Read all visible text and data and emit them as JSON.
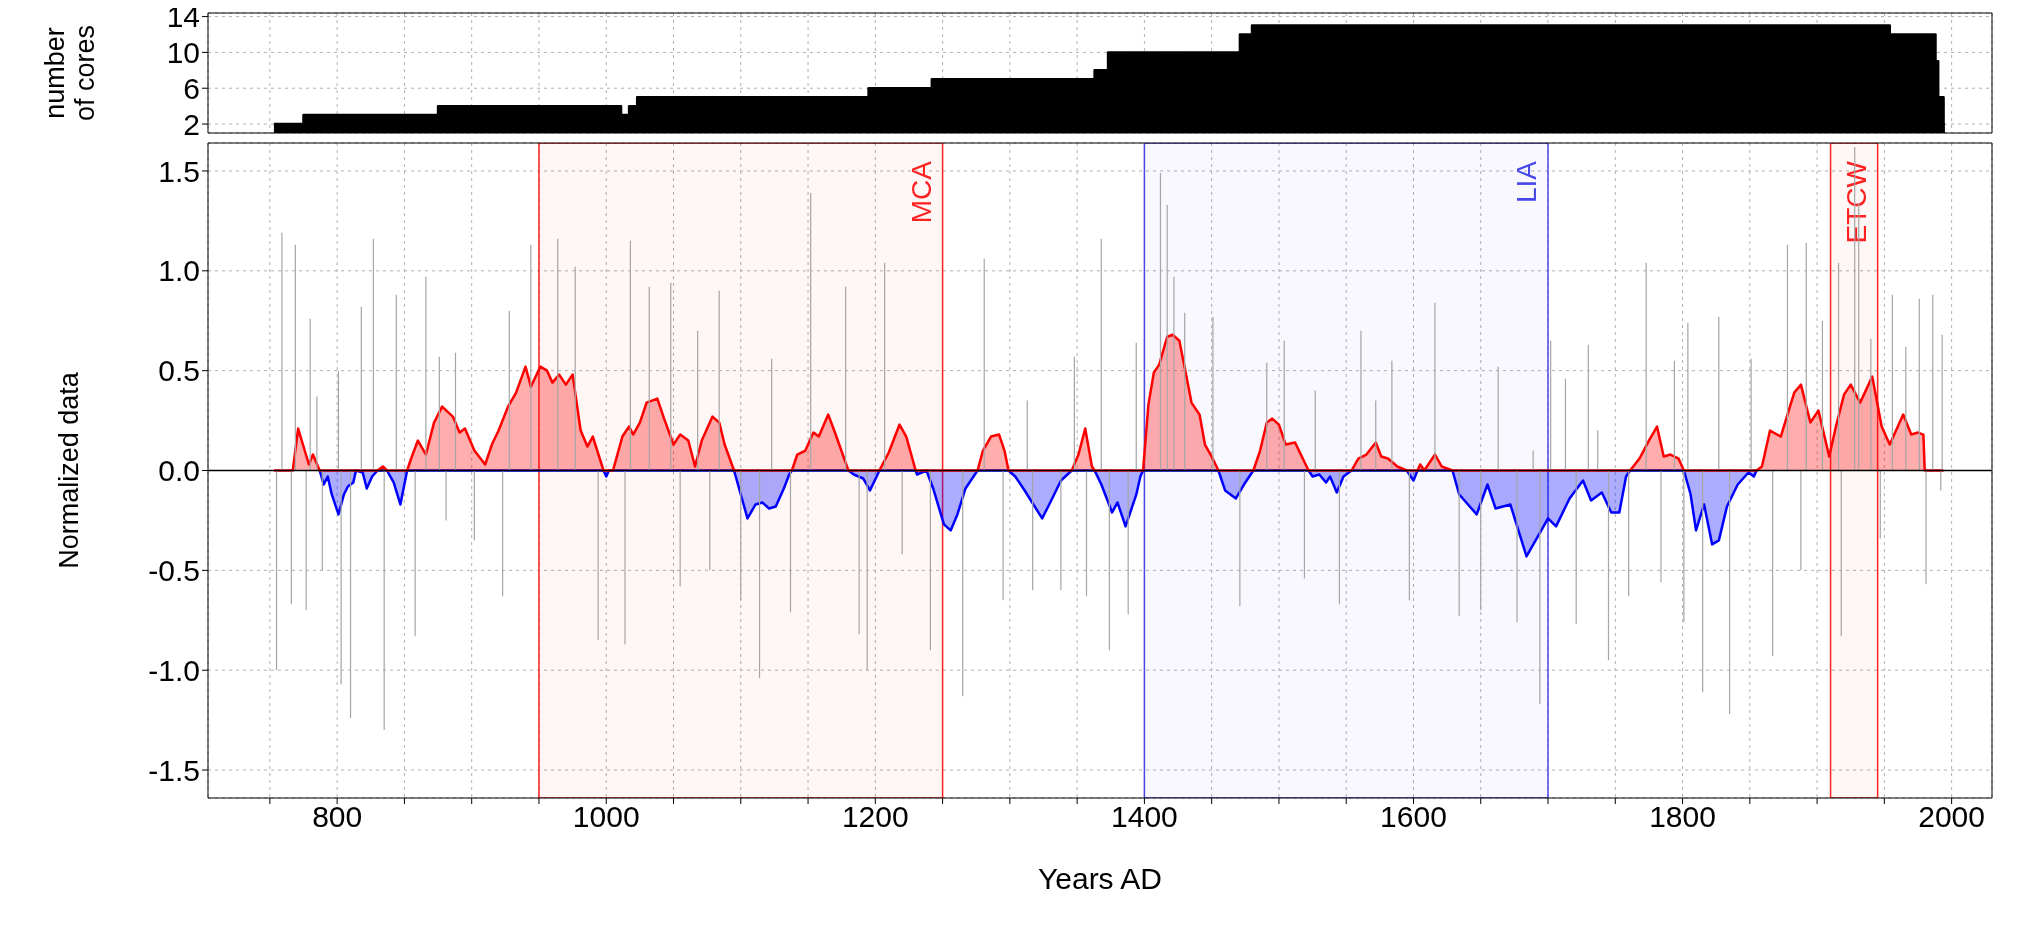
{
  "chart_data": [
    {
      "type": "area",
      "ylabel": "number of cores",
      "xlim": [
        704,
        2030
      ],
      "ylim": [
        1,
        14.4
      ],
      "yticks": [
        2,
        6,
        10,
        14
      ],
      "grid": true,
      "tick_labels": "y",
      "xticks": [
        {
          "value": 750,
          "label": null
        },
        800,
        {
          "value": 850,
          "label": null
        },
        {
          "value": 900,
          "label": null
        },
        {
          "value": 950,
          "label": null
        },
        1000,
        {
          "value": 1050,
          "label": null
        },
        {
          "value": 1100,
          "label": null
        },
        {
          "value": 1150,
          "label": null
        },
        1200,
        {
          "value": 1250,
          "label": null
        },
        {
          "value": 1300,
          "label": null
        },
        {
          "value": 1350,
          "label": null
        },
        1400,
        {
          "value": 1450,
          "label": null
        },
        {
          "value": 1500,
          "label": null
        },
        {
          "value": 1550,
          "label": null
        },
        1600,
        {
          "value": 1650,
          "label": null
        },
        {
          "value": 1700,
          "label": null
        },
        {
          "value": 1750,
          "label": null
        },
        1800,
        {
          "value": 1850,
          "label": null
        },
        {
          "value": 1900,
          "label": null
        },
        {
          "value": 1950,
          "label": null
        },
        2000
      ],
      "series": [
        {
          "color": "#000000",
          "x": [
            753,
            775,
            775,
            875,
            875,
            1011,
            1011,
            1017,
            1017,
            1023,
            1023,
            1195,
            1195,
            1242,
            1242,
            1363,
            1363,
            1373,
            1373,
            1471,
            1471,
            1480,
            1480,
            1954,
            1954,
            1988,
            1988,
            1990,
            1990,
            1994,
            1994,
            1995
          ],
          "values": [
            2,
            2,
            3,
            3,
            4,
            4,
            3,
            3,
            4,
            4,
            5,
            5,
            6,
            6,
            7,
            7,
            8,
            8,
            10,
            10,
            12,
            12,
            13,
            13,
            12,
            12,
            9,
            9,
            5,
            5,
            2,
            2
          ]
        }
      ]
    },
    {
      "type": "area",
      "xlabel": "Years AD",
      "ylabel": "Normalized data",
      "xlim": [
        704,
        2030
      ],
      "ylim": [
        -1.64,
        1.64
      ],
      "grid": true,
      "xticks": [
        {
          "value": 750,
          "label": null
        },
        800,
        {
          "value": 850,
          "label": null
        },
        {
          "value": 900,
          "label": null
        },
        {
          "value": 950,
          "label": null
        },
        1000,
        {
          "value": 1050,
          "label": null
        },
        {
          "value": 1100,
          "label": null
        },
        {
          "value": 1150,
          "label": null
        },
        1200,
        {
          "value": 1250,
          "label": null
        },
        {
          "value": 1300,
          "label": null
        },
        {
          "value": 1350,
          "label": null
        },
        1400,
        {
          "value": 1450,
          "label": null
        },
        {
          "value": 1500,
          "label": null
        },
        {
          "value": 1550,
          "label": null
        },
        1600,
        {
          "value": 1650,
          "label": null
        },
        {
          "value": 1700,
          "label": null
        },
        {
          "value": 1750,
          "label": null
        },
        1800,
        {
          "value": 1850,
          "label": null
        },
        {
          "value": 1900,
          "label": null
        },
        {
          "value": 1950,
          "label": null
        },
        2000
      ],
      "yticks": [
        -1.5,
        {
          "value": -1,
          "label": "-1.0"
        },
        -0.5,
        {
          "value": 0,
          "label": "0.0"
        },
        0.5,
        {
          "value": 1,
          "label": "1.0"
        },
        1.5
      ],
      "ref_lines": [
        {
          "axis": "y",
          "value": 0,
          "color": "#000000"
        }
      ],
      "bands": [
        {
          "axis": "x",
          "from": 950,
          "to": 1250,
          "label": "MCA",
          "color": "#ff2020"
        },
        {
          "axis": "x",
          "from": 1400,
          "to": 1700,
          "label": "LIA",
          "color": "#4848e8"
        },
        {
          "axis": "x",
          "from": 1910,
          "to": 1945,
          "label": "ETCW",
          "color": "#ff2020"
        }
      ],
      "series": [
        {
          "type": "bar",
          "color": "#a6a6a6",
          "x": [
            755,
            759,
            766,
            769,
            777,
            780,
            785,
            789,
            801,
            803,
            810,
            818,
            827,
            835,
            844,
            858,
            866,
            876,
            881,
            888,
            902,
            923,
            928,
            944,
            964,
            977,
            994,
            1014,
            1018,
            1032,
            1048,
            1055,
            1068,
            1077,
            1084,
            1100,
            1114,
            1123,
            1137,
            1152,
            1178,
            1188,
            1194,
            1207,
            1220,
            1241,
            1265,
            1281,
            1295,
            1313,
            1317,
            1338,
            1348,
            1357,
            1368,
            1374,
            1388,
            1394,
            1412,
            1417,
            1422,
            1430,
            1451,
            1471,
            1491,
            1504,
            1519,
            1527,
            1545,
            1561,
            1572,
            1584,
            1597,
            1616,
            1634,
            1650,
            1663,
            1677,
            1689,
            1694,
            1702,
            1713,
            1721,
            1730,
            1737,
            1745,
            1760,
            1773,
            1784,
            1794,
            1801,
            1804,
            1815,
            1827,
            1835,
            1851,
            1867,
            1878,
            1888,
            1892,
            1904,
            1916,
            1918,
            1928,
            1931,
            1940,
            1947,
            1956,
            1966,
            1976,
            1981,
            1986,
            1992,
            1993
          ],
          "values": [
            -1.0,
            1.19,
            -0.67,
            1.13,
            -0.7,
            0.76,
            0.37,
            -0.5,
            0.5,
            -1.07,
            -1.24,
            0.82,
            1.16,
            -1.3,
            0.88,
            -0.83,
            0.97,
            0.57,
            -0.25,
            0.59,
            -0.35,
            -0.63,
            0.8,
            1.13,
            1.16,
            1.02,
            -0.85,
            -0.87,
            1.15,
            0.92,
            0.94,
            -0.58,
            0.7,
            -0.5,
            0.9,
            -0.65,
            -1.04,
            0.56,
            -0.71,
            1.39,
            0.92,
            -0.82,
            -1.0,
            1.04,
            -0.42,
            -0.9,
            -1.13,
            1.06,
            -0.65,
            0.35,
            -0.6,
            -0.6,
            0.57,
            -0.63,
            1.16,
            -0.9,
            -0.72,
            0.64,
            1.49,
            1.33,
            0.97,
            0.79,
            0.77,
            -0.68,
            0.54,
            0.65,
            -0.54,
            0.4,
            -0.67,
            0.7,
            0.35,
            0.55,
            -0.65,
            0.84,
            -0.73,
            -0.7,
            0.52,
            -0.76,
            0.1,
            -1.17,
            0.65,
            0.46,
            -0.77,
            0.63,
            0.2,
            -0.95,
            -0.63,
            1.04,
            -0.56,
            0.55,
            -0.76,
            0.74,
            -1.11,
            0.77,
            -1.22,
            0.56,
            -0.93,
            1.13,
            -0.5,
            1.14,
            0.75,
            1.04,
            -0.83,
            1.62,
            1.34,
            0.66,
            -0.34,
            0.88,
            0.62,
            0.86,
            -0.57,
            0.88,
            -0.1,
            0.68
          ]
        },
        {
          "color": "#0000ff",
          "x": [
            787,
            790,
            793,
            796,
            801,
            805,
            808,
            812,
            814,
            819,
            822,
            826,
            830,
            837,
            842,
            847,
            852,
            998,
            1000,
            1002,
            1095,
            1100,
            1105,
            1111,
            1116,
            1121,
            1126,
            1132,
            1136,
            1138,
            1180,
            1184,
            1191,
            1196,
            1201,
            1203,
            1230,
            1231,
            1238,
            1243,
            1251,
            1256,
            1261,
            1267,
            1273,
            1276,
            1299,
            1304,
            1311,
            1324,
            1330,
            1338,
            1346,
            1363,
            1368,
            1376,
            1380,
            1386,
            1394,
            1397,
            1399,
            1455,
            1460,
            1468,
            1475,
            1481,
            1522,
            1525,
            1530,
            1535,
            1538,
            1543,
            1548,
            1554,
            1595,
            1600,
            1603,
            1629,
            1634,
            1647,
            1655,
            1661,
            1672,
            1684,
            1695,
            1700,
            1706,
            1716,
            1726,
            1732,
            1740,
            1747,
            1753,
            1758,
            1761,
            1801,
            1806,
            1810,
            1816,
            1822,
            1827,
            1833,
            1841,
            1849,
            1853,
            1855
          ],
          "values": [
            0,
            -0.07,
            -0.03,
            -0.12,
            -0.22,
            -0.12,
            -0.08,
            -0.06,
            0,
            -0.01,
            -0.09,
            -0.03,
            0,
            0,
            -0.06,
            -0.17,
            0,
            0,
            -0.03,
            0,
            0,
            -0.12,
            -0.24,
            -0.17,
            -0.16,
            -0.19,
            -0.18,
            -0.09,
            -0.02,
            0,
            0,
            -0.02,
            -0.04,
            -0.1,
            -0.03,
            0,
            0,
            -0.02,
            0,
            -0.09,
            -0.27,
            -0.3,
            -0.22,
            -0.09,
            -0.03,
            0,
            0,
            -0.03,
            -0.1,
            -0.24,
            -0.16,
            -0.05,
            0,
            0,
            -0.07,
            -0.21,
            -0.16,
            -0.28,
            -0.12,
            -0.03,
            0,
            0,
            -0.1,
            -0.14,
            -0.06,
            0,
            0,
            -0.03,
            -0.02,
            -0.06,
            -0.03,
            -0.11,
            -0.03,
            0,
            0,
            -0.05,
            0,
            0,
            -0.12,
            -0.22,
            -0.07,
            -0.19,
            -0.17,
            -0.43,
            -0.3,
            -0.24,
            -0.28,
            -0.14,
            -0.05,
            -0.15,
            -0.11,
            -0.21,
            -0.21,
            -0.03,
            0,
            0,
            -0.12,
            -0.3,
            -0.17,
            -0.37,
            -0.35,
            -0.18,
            -0.07,
            -0.01,
            -0.03,
            0
          ]
        },
        {
          "color": "#ff0000",
          "x": [
            753,
            767,
            771,
            779,
            782,
            787,
            830,
            834,
            837,
            852,
            855,
            860,
            866,
            872,
            878,
            886,
            891,
            895,
            902,
            910,
            915,
            920,
            927,
            933,
            940,
            944,
            951,
            956,
            960,
            965,
            970,
            975,
            981,
            986,
            990,
            998,
            1005,
            1012,
            1017,
            1020,
            1025,
            1030,
            1038,
            1043,
            1050,
            1055,
            1061,
            1066,
            1071,
            1079,
            1084,
            1088,
            1095,
            1138,
            1142,
            1148,
            1154,
            1158,
            1165,
            1170,
            1180,
            1203,
            1210,
            1218,
            1223,
            1230,
            1276,
            1280,
            1286,
            1292,
            1296,
            1299,
            1346,
            1351,
            1356,
            1361,
            1363,
            1399,
            1403,
            1407,
            1411,
            1417,
            1421,
            1426,
            1431,
            1435,
            1441,
            1445,
            1450,
            1455,
            1481,
            1486,
            1491,
            1495,
            1500,
            1505,
            1512,
            1522,
            1554,
            1559,
            1565,
            1572,
            1576,
            1581,
            1588,
            1595,
            1603,
            1605,
            1608,
            1616,
            1621,
            1629,
            1761,
            1768,
            1775,
            1781,
            1786,
            1791,
            1797,
            1801,
            1855,
            1859,
            1865,
            1873,
            1883,
            1888,
            1895,
            1901,
            1909,
            1914,
            1920,
            1925,
            1932,
            1941,
            1948,
            1954,
            1964,
            1970,
            1975,
            1979,
            1980,
            1994
          ],
          "values": [
            0,
            0,
            0.21,
            0.03,
            0.08,
            0,
            0,
            0.02,
            0,
            0,
            0.06,
            0.15,
            0.08,
            0.24,
            0.32,
            0.27,
            0.19,
            0.21,
            0.1,
            0.03,
            0.13,
            0.2,
            0.32,
            0.39,
            0.52,
            0.42,
            0.52,
            0.5,
            0.44,
            0.48,
            0.43,
            0.48,
            0.2,
            0.12,
            0.17,
            0,
            0,
            0.17,
            0.22,
            0.18,
            0.24,
            0.34,
            0.36,
            0.26,
            0.13,
            0.18,
            0.15,
            0.02,
            0.15,
            0.27,
            0.24,
            0.13,
            0,
            0,
            0.08,
            0.1,
            0.19,
            0.17,
            0.28,
            0.19,
            0,
            0,
            0.09,
            0.23,
            0.17,
            0,
            0,
            0.1,
            0.17,
            0.18,
            0.1,
            0,
            0,
            0.08,
            0.21,
            0.02,
            0,
            0,
            0.33,
            0.49,
            0.53,
            0.67,
            0.68,
            0.65,
            0.48,
            0.34,
            0.28,
            0.13,
            0.07,
            0,
            0,
            0.1,
            0.24,
            0.26,
            0.23,
            0.13,
            0.14,
            0,
            0,
            0.06,
            0.08,
            0.14,
            0.07,
            0.06,
            0.02,
            0,
            0,
            0.03,
            0,
            0.08,
            0.02,
            0,
            0,
            0.06,
            0.15,
            0.22,
            0.07,
            0.08,
            0.06,
            0,
            0,
            0.02,
            0.2,
            0.17,
            0.39,
            0.43,
            0.24,
            0.3,
            0.07,
            0.22,
            0.38,
            0.43,
            0.34,
            0.47,
            0.22,
            0.13,
            0.28,
            0.18,
            0.19,
            0.18,
            0,
            0
          ]
        }
      ]
    }
  ]
}
